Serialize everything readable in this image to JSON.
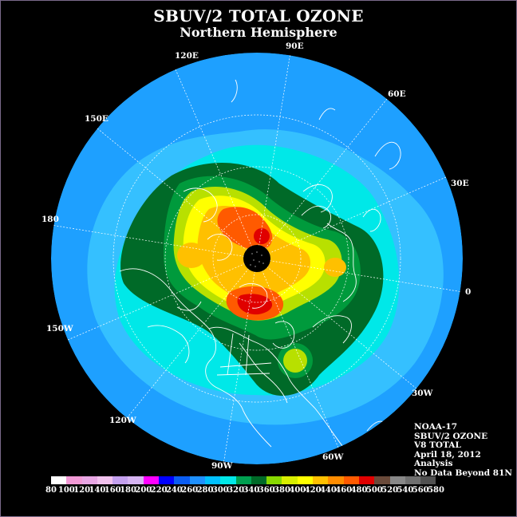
{
  "title": "SBUV/2 TOTAL OZONE",
  "subtitle": "Northern Hemisphere",
  "longitude_labels": [
    "120E",
    "90E",
    "60E",
    "150E",
    "30E",
    "180",
    "0",
    "150W",
    "30W",
    "120W",
    "60W",
    "90W"
  ],
  "info": {
    "satellite": "NOAA-17",
    "instrument": "SBUV/2 OZONE",
    "version": "V8 TOTAL",
    "date": "April 18, 2012",
    "type": "Analysis",
    "note": "No Data Beyond 81N"
  },
  "legend": {
    "ticks": [
      "80",
      "100",
      "120",
      "140",
      "160",
      "180",
      "200",
      "220",
      "240",
      "260",
      "280",
      "300",
      "320",
      "340",
      "360",
      "380",
      "400",
      "420",
      "440",
      "460",
      "480",
      "500",
      "520",
      "540",
      "560",
      "580"
    ],
    "colors": [
      "#ffffff",
      "#f29ad6",
      "#e8a6e4",
      "#f2c2ee",
      "#c4a0ee",
      "#d6b4f2",
      "#ff00ff",
      "#0000ff",
      "#0a5cf2",
      "#1e90ff",
      "#00c0ff",
      "#00e8e8",
      "#00a050",
      "#006a28",
      "#88d800",
      "#d8ee00",
      "#ffff00",
      "#ffc000",
      "#ff8c00",
      "#ff5a00",
      "#e00000",
      "#6a4a3a",
      "#888888",
      "#707070",
      "#505050"
    ]
  },
  "colors": {
    "ocean_base": "#1ea0ff",
    "low_band": "#35c0ff",
    "mid_band": "#00e8e8",
    "green_dark": "#006a28",
    "green": "#009a3c",
    "yellow_green": "#b8e000",
    "yellow": "#ffff00",
    "orange": "#ffc000",
    "red_orange": "#ff5a00",
    "red": "#e00000",
    "pole": "#000000"
  }
}
